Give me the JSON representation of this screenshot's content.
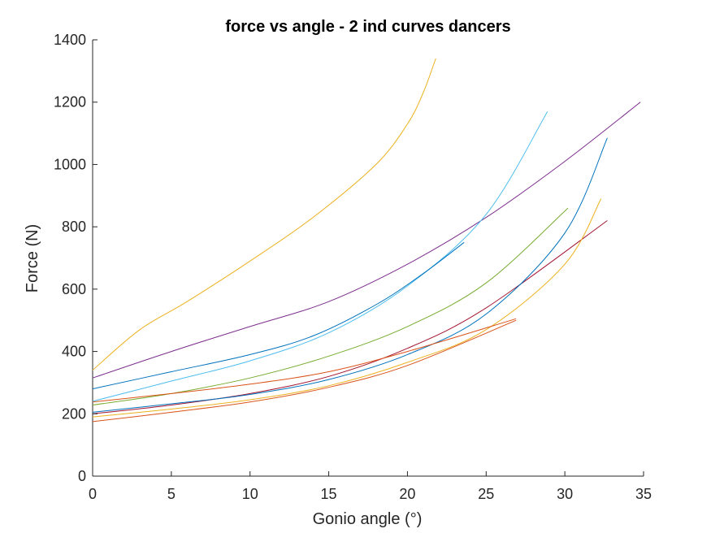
{
  "chart_data": {
    "type": "line",
    "title": "force vs angle - 2 ind curves dancers",
    "xlabel": "Gonio angle (°)",
    "ylabel": "Force (N)",
    "xlim": [
      0,
      35
    ],
    "ylim": [
      0,
      1400
    ],
    "xticks": [
      0,
      5,
      10,
      15,
      20,
      25,
      30,
      35
    ],
    "yticks": [
      0,
      200,
      400,
      600,
      800,
      1000,
      1200,
      1400
    ],
    "grid": false,
    "legend": "none",
    "series": [
      {
        "color": "#EDB120",
        "x": [
          0,
          3,
          6,
          10,
          14,
          18,
          20,
          21,
          21.8
        ],
        "y": [
          340,
          470,
          560,
          690,
          830,
          1000,
          1130,
          1230,
          1340
        ]
      },
      {
        "color": "#7E2F8E",
        "x": [
          0,
          5,
          10,
          15,
          20,
          25,
          30,
          34.8
        ],
        "y": [
          315,
          400,
          480,
          560,
          680,
          830,
          1010,
          1200
        ]
      },
      {
        "color": "#4DBEEE",
        "x": [
          0,
          5,
          10,
          15,
          20,
          25,
          28.9
        ],
        "y": [
          240,
          305,
          370,
          460,
          610,
          840,
          1170
        ]
      },
      {
        "color": "#0072BD",
        "x": [
          0,
          5,
          10,
          14,
          18,
          21,
          23.6
        ],
        "y": [
          280,
          335,
          390,
          450,
          550,
          650,
          750
        ]
      },
      {
        "color": "#77AC30",
        "x": [
          0,
          5,
          10,
          15,
          20,
          25,
          30.2
        ],
        "y": [
          228,
          265,
          315,
          385,
          480,
          620,
          860
        ]
      },
      {
        "color": "#A2142F",
        "x": [
          0,
          5,
          10,
          15,
          20,
          25,
          32.7
        ],
        "y": [
          200,
          228,
          265,
          320,
          410,
          540,
          820
        ]
      },
      {
        "color": "#0072BD",
        "x": [
          0,
          5,
          10,
          15,
          20,
          25,
          30,
          32.7
        ],
        "y": [
          205,
          232,
          262,
          310,
          390,
          520,
          780,
          1085
        ]
      },
      {
        "color": "#EDB120",
        "x": [
          0,
          5,
          10,
          15,
          20,
          25,
          30,
          32.3
        ],
        "y": [
          190,
          215,
          245,
          290,
          365,
          470,
          680,
          890
        ]
      },
      {
        "color": "#D95319",
        "x": [
          0,
          5,
          10,
          15,
          20,
          26.9
        ],
        "y": [
          238,
          265,
          295,
          335,
          400,
          505
        ]
      },
      {
        "color": "#D95319",
        "x": [
          0,
          5,
          10,
          15,
          20,
          26.9
        ],
        "y": [
          175,
          205,
          238,
          285,
          355,
          500
        ]
      }
    ]
  }
}
